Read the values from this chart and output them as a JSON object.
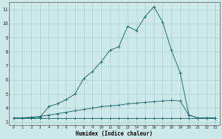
{
  "xlabel": "Humidex (Indice chaleur)",
  "xlim": [
    -0.5,
    23.5
  ],
  "ylim": [
    2.8,
    11.5
  ],
  "xtick_labels": [
    "0",
    "1",
    "2",
    "3",
    "4",
    "5",
    "6",
    "7",
    "8",
    "9",
    "10",
    "11",
    "12",
    "13",
    "14",
    "15",
    "16",
    "17",
    "18",
    "19",
    "20",
    "21",
    "22",
    "23"
  ],
  "ytick_labels": [
    "3",
    "4",
    "5",
    "6",
    "7",
    "8",
    "9",
    "10",
    "11"
  ],
  "yticks": [
    3,
    4,
    5,
    6,
    7,
    8,
    9,
    10,
    11
  ],
  "bg_color": "#cce8e8",
  "grid_color": "#aacccc",
  "line_color": "#1a6b6b",
  "series1_x": [
    0,
    1,
    2,
    3,
    4,
    5,
    6,
    7,
    8,
    9,
    10,
    11,
    12,
    13,
    14,
    15,
    16,
    17,
    18,
    19,
    20,
    21,
    22,
    23
  ],
  "series1_y": [
    3.3,
    3.3,
    3.3,
    3.3,
    3.3,
    3.3,
    3.3,
    3.3,
    3.3,
    3.3,
    3.3,
    3.3,
    3.3,
    3.3,
    3.3,
    3.3,
    3.3,
    3.3,
    3.3,
    3.3,
    3.3,
    3.3,
    3.3,
    3.3
  ],
  "series2_x": [
    0,
    1,
    2,
    3,
    4,
    5,
    6,
    7,
    8,
    9,
    10,
    11,
    12,
    13,
    14,
    15,
    16,
    17,
    18,
    19,
    20,
    21,
    22,
    23
  ],
  "series2_y": [
    3.3,
    3.3,
    3.35,
    3.4,
    3.5,
    3.6,
    3.7,
    3.8,
    3.9,
    4.0,
    4.1,
    4.15,
    4.2,
    4.3,
    4.35,
    4.4,
    4.45,
    4.5,
    4.55,
    4.5,
    3.5,
    3.3,
    3.3,
    3.3
  ],
  "series3_x": [
    0,
    1,
    2,
    3,
    4,
    5,
    6,
    7,
    8,
    9,
    10,
    11,
    12,
    13,
    14,
    15,
    16,
    17,
    18,
    19,
    20,
    21,
    22,
    23
  ],
  "series3_y": [
    3.3,
    3.3,
    3.3,
    3.35,
    4.1,
    4.3,
    4.6,
    5.0,
    6.1,
    6.6,
    7.3,
    8.1,
    8.35,
    9.8,
    9.5,
    10.5,
    11.2,
    10.1,
    8.1,
    6.5,
    3.5,
    3.3,
    3.3,
    3.3
  ]
}
